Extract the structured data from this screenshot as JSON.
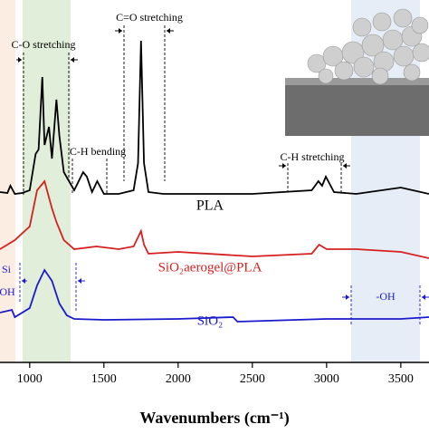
{
  "chart_data": {
    "type": "line",
    "xlabel": "Wavenumbers (cm⁻¹)",
    "xlim": [
      800,
      3690
    ],
    "xticks": [
      1000,
      1500,
      2000,
      2500,
      3000,
      3500
    ],
    "ylim": [
      0,
      100
    ],
    "series": [
      {
        "name": "PLA",
        "color": "#000000",
        "x": [
          800,
          850,
          870,
          900,
          950,
          1000,
          1040,
          1060,
          1085,
          1100,
          1130,
          1150,
          1180,
          1200,
          1230,
          1265,
          1300,
          1360,
          1385,
          1420,
          1455,
          1500,
          1600,
          1700,
          1730,
          1750,
          1770,
          1800,
          1900,
          2000,
          2500,
          2900,
          2945,
          2970,
          2995,
          3050,
          3200,
          3500,
          3690
        ],
        "values": [
          47,
          46.75,
          48.75,
          46.5,
          46.75,
          47.5,
          57.5,
          58.75,
          78.75,
          60,
          65,
          56.25,
          72.5,
          62.5,
          52.5,
          50,
          47.5,
          52.5,
          51.25,
          47,
          50,
          46.5,
          46.5,
          47.5,
          55,
          88.75,
          55,
          47,
          46.5,
          46.5,
          46.5,
          47.5,
          50,
          48.75,
          51.25,
          47,
          46.5,
          48.25,
          46.5
        ]
      },
      {
        "name": "SiO₂aerogel@PLA",
        "color": "#d62020",
        "x": [
          800,
          900,
          1000,
          1050,
          1100,
          1150,
          1180,
          1230,
          1300,
          1450,
          1600,
          1700,
          1750,
          1770,
          1800,
          2000,
          2500,
          2900,
          2950,
          3000,
          3200,
          3500,
          3690
        ],
        "values": [
          31.25,
          33.75,
          37.5,
          47.5,
          50,
          42.5,
          38.75,
          33.75,
          31.25,
          32,
          31.25,
          32,
          36.25,
          32.5,
          30,
          30.5,
          29.25,
          30,
          32.5,
          31.25,
          31.25,
          30.5,
          28.75
        ]
      },
      {
        "name": "SiO₂",
        "color": "#1a1acc",
        "x": [
          800,
          880,
          900,
          1000,
          1050,
          1100,
          1150,
          1200,
          1250,
          1300,
          1500,
          2000,
          2370,
          2400,
          3000,
          3500,
          3690
        ],
        "values": [
          13.75,
          14.5,
          12.5,
          15,
          21.25,
          25.5,
          22.5,
          16.25,
          13,
          12,
          11.75,
          12,
          12.5,
          11.25,
          12,
          12,
          12.5
        ]
      }
    ],
    "annotations": [
      "C-O stretching",
      "C=O stretching",
      "C-H bending",
      "C-H stretching",
      "Si",
      "OH",
      "-OH"
    ]
  }
}
